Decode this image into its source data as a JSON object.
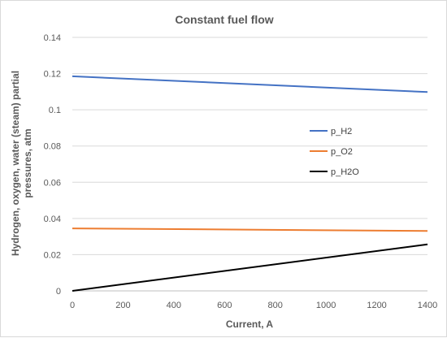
{
  "chart_data": {
    "type": "line",
    "title": "Constant fuel flow",
    "xlabel": "Current, A",
    "ylabel_lines": [
      "Hydrogen, oxygen, water (steam) partial",
      "pressures, atm"
    ],
    "xlim": [
      0,
      1400
    ],
    "ylim": [
      0,
      0.14
    ],
    "x_ticks": [
      0,
      200,
      400,
      600,
      800,
      1000,
      1200,
      1400
    ],
    "y_ticks": [
      0,
      0.02,
      0.04,
      0.06,
      0.08,
      0.1,
      0.12,
      0.14
    ],
    "x_tick_labels": [
      "0",
      "200",
      "400",
      "600",
      "800",
      "1000",
      "1200",
      "1400"
    ],
    "y_tick_labels": [
      "0",
      "0.02",
      "0.04",
      "0.06",
      "0.08",
      "0.1",
      "0.12",
      "0.14"
    ],
    "grid": true,
    "legend_position": "right",
    "series": [
      {
        "name": "p_H2",
        "color": "#4472c4",
        "x": [
          0,
          1400
        ],
        "y": [
          0.1185,
          0.1098
        ]
      },
      {
        "name": "p_O2",
        "color": "#ed7d31",
        "x": [
          0,
          1400
        ],
        "y": [
          0.0345,
          0.0331
        ]
      },
      {
        "name": "p_H2O",
        "color": "#000000",
        "x": [
          0,
          1400
        ],
        "y": [
          0.0,
          0.0257
        ]
      }
    ]
  }
}
